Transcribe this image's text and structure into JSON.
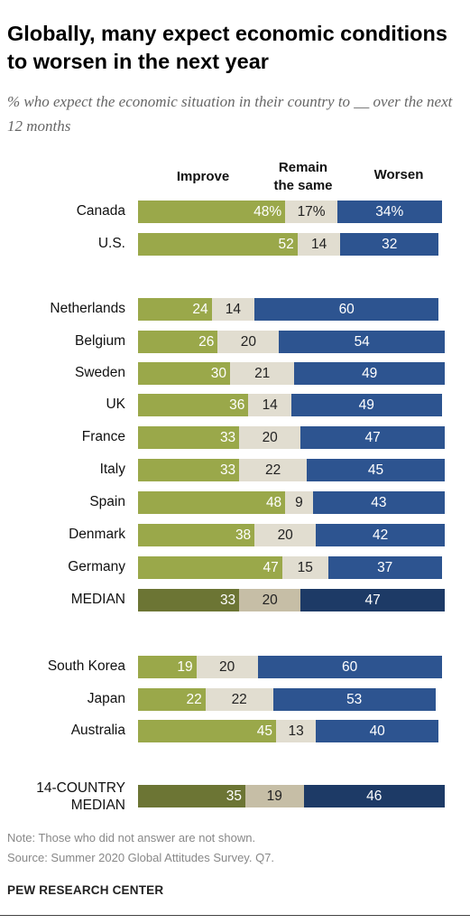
{
  "title": "Globally, many expect economic conditions to worsen in the next year",
  "subtitle": "% who expect the economic situation in their country to __ over the next 12 months",
  "note": "Note: Those who did not answer are not shown.",
  "source": "Source: Summer 2020 Global Attitudes Survey. Q7.",
  "footer": "PEW RESEARCH CENTER",
  "colors": {
    "improve": "#9aa84a",
    "same": "#e1ddd0",
    "worsen": "#2d5490",
    "improve_median": "#6c7534",
    "same_median": "#c6bea6",
    "worsen_median": "#1d3a66"
  },
  "chart_data": {
    "type": "bar",
    "orientation": "horizontal",
    "stacked": true,
    "series": [
      {
        "name": "Improve",
        "values": [
          48,
          52,
          24,
          26,
          30,
          36,
          33,
          33,
          48,
          38,
          47,
          33,
          19,
          22,
          45,
          35
        ]
      },
      {
        "name": "Remain the same",
        "values": [
          17,
          14,
          14,
          20,
          21,
          14,
          20,
          22,
          9,
          20,
          15,
          20,
          20,
          22,
          13,
          19
        ]
      },
      {
        "name": "Worsen",
        "values": [
          34,
          32,
          60,
          54,
          49,
          49,
          47,
          45,
          43,
          42,
          37,
          47,
          60,
          53,
          40,
          46
        ]
      }
    ],
    "categories": [
      "Canada",
      "U.S.",
      "Netherlands",
      "Belgium",
      "Sweden",
      "UK",
      "France",
      "Italy",
      "Spain",
      "Denmark",
      "Germany",
      "MEDIAN",
      "South Korea",
      "Japan",
      "Australia",
      "14-COUNTRY MEDIAN"
    ],
    "value_labels": [
      [
        "48%",
        "17%",
        "34%"
      ],
      [
        "52",
        "14",
        "32"
      ],
      [
        "24",
        "14",
        "60"
      ],
      [
        "26",
        "20",
        "54"
      ],
      [
        "30",
        "21",
        "49"
      ],
      [
        "36",
        "14",
        "49"
      ],
      [
        "33",
        "20",
        "47"
      ],
      [
        "33",
        "22",
        "45"
      ],
      [
        "48",
        "9",
        "43"
      ],
      [
        "38",
        "20",
        "42"
      ],
      [
        "47",
        "15",
        "37"
      ],
      [
        "33",
        "20",
        "47"
      ],
      [
        "19",
        "20",
        "60"
      ],
      [
        "22",
        "22",
        "53"
      ],
      [
        "45",
        "13",
        "40"
      ],
      [
        "35",
        "19",
        "46"
      ]
    ],
    "median_rows": [
      "MEDIAN",
      "14-COUNTRY MEDIAN"
    ],
    "xlim": [
      0,
      100
    ]
  },
  "column_headers": {
    "improve": "Improve",
    "same_line1": "Remain",
    "same_line2": "the same",
    "worsen": "Worsen"
  }
}
